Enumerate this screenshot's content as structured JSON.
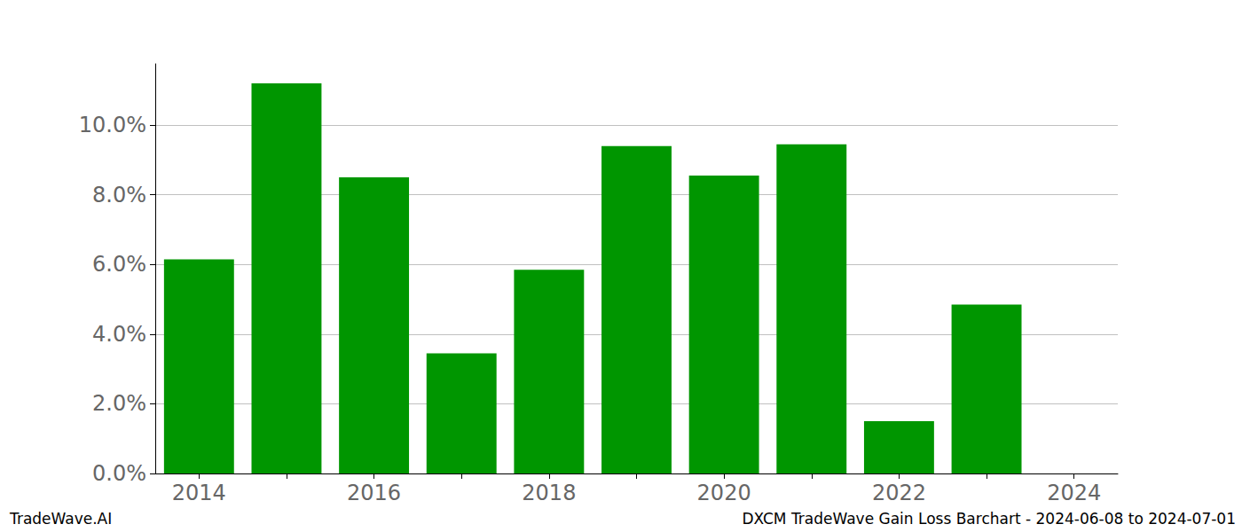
{
  "chart_data": {
    "type": "bar",
    "title": "DXCM TradeWave Gain Loss Barchart - 2024-06-08 to 2024-07-01",
    "annotations": [
      "TradeWave.AI"
    ],
    "categories": [
      "2014",
      null,
      "2016",
      null,
      "2018",
      null,
      "2020",
      null,
      "2022",
      null,
      "2024"
    ],
    "values": [
      6.15,
      11.2,
      8.5,
      3.45,
      5.85,
      9.4,
      8.55,
      9.45,
      1.5,
      4.85,
      null
    ],
    "color": "#009600",
    "ylim": [
      0,
      11.76
    ],
    "yticks": [
      {
        "value": 0,
        "label": "0.0%"
      },
      {
        "value": 2,
        "label": "2.0%"
      },
      {
        "value": 4,
        "label": "4.0%"
      },
      {
        "value": 6,
        "label": "6.0%"
      },
      {
        "value": 8,
        "label": "8.0%"
      },
      {
        "value": 10,
        "label": "10.0%"
      }
    ],
    "grid": true
  }
}
